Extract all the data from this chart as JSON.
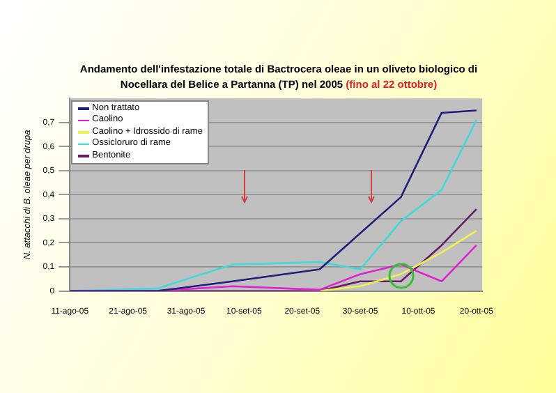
{
  "chart_data": {
    "type": "line",
    "title": "Andamento dell'infestazione totale di Bactrocera oleae in un oliveto biologico di Nocellara del Belice a Partanna (TP) nel 2005",
    "subtitle": "(fino al 22 ottobre)",
    "ylabel": "N. attacchi di B. oleae per drupa",
    "x": [
      "2005-08-11",
      "2005-08-26",
      "2005-09-08",
      "2005-09-23",
      "2005-09-30",
      "2005-10-07",
      "2005-10-14",
      "2005-10-20"
    ],
    "series": [
      {
        "name": "Non trattato",
        "color": "#1f1f7a",
        "values": [
          0,
          0,
          0.04,
          0.09,
          null,
          0.39,
          0.74,
          0.75
        ]
      },
      {
        "name": "Caolino",
        "color": "#e020d0",
        "values": [
          0,
          0,
          0.02,
          0.005,
          0.07,
          0.11,
          0.04,
          0.19
        ]
      },
      {
        "name": "Caolino + Idrossido di rame",
        "color": "#f0f050",
        "values": [
          null,
          null,
          null,
          0,
          0.02,
          0.07,
          0.16,
          0.25
        ]
      },
      {
        "name": "Ossicloruro di rame",
        "color": "#40d8d8",
        "values": [
          0,
          0.01,
          0.11,
          0.12,
          0.09,
          0.29,
          0.42,
          0.71
        ]
      },
      {
        "name": "Bentonite",
        "color": "#6a1a6a",
        "values": [
          0,
          0,
          0,
          0,
          0.04,
          0.04,
          0.19,
          0.34
        ]
      }
    ],
    "xlim": [
      "2005-08-11",
      "2005-10-21"
    ],
    "xticks": [
      {
        "value": "2005-08-11",
        "label": "11-ago-05"
      },
      {
        "value": "2005-08-21",
        "label": "21-ago-05"
      },
      {
        "value": "2005-08-31",
        "label": "31-ago-05"
      },
      {
        "value": "2005-09-10",
        "label": "10-set-05"
      },
      {
        "value": "2005-09-20",
        "label": "20-set-05"
      },
      {
        "value": "2005-09-30",
        "label": "30-set-05"
      },
      {
        "value": "2005-10-10",
        "label": "10-ott-05"
      },
      {
        "value": "2005-10-20",
        "label": "20-ott-05"
      }
    ],
    "ylim": [
      0,
      0.8
    ],
    "yticks": [
      {
        "value": 0,
        "label": "0"
      },
      {
        "value": 0.1,
        "label": "0,1"
      },
      {
        "value": 0.2,
        "label": "0,2"
      },
      {
        "value": 0.3,
        "label": "0,3"
      },
      {
        "value": 0.4,
        "label": "0,4"
      },
      {
        "value": 0.5,
        "label": "0,5"
      },
      {
        "value": 0.6,
        "label": "0,6"
      },
      {
        "value": 0.7,
        "label": "0,7"
      }
    ],
    "grid": "y",
    "legend": "top left",
    "marker": "none",
    "line_style": "solid"
  }
}
